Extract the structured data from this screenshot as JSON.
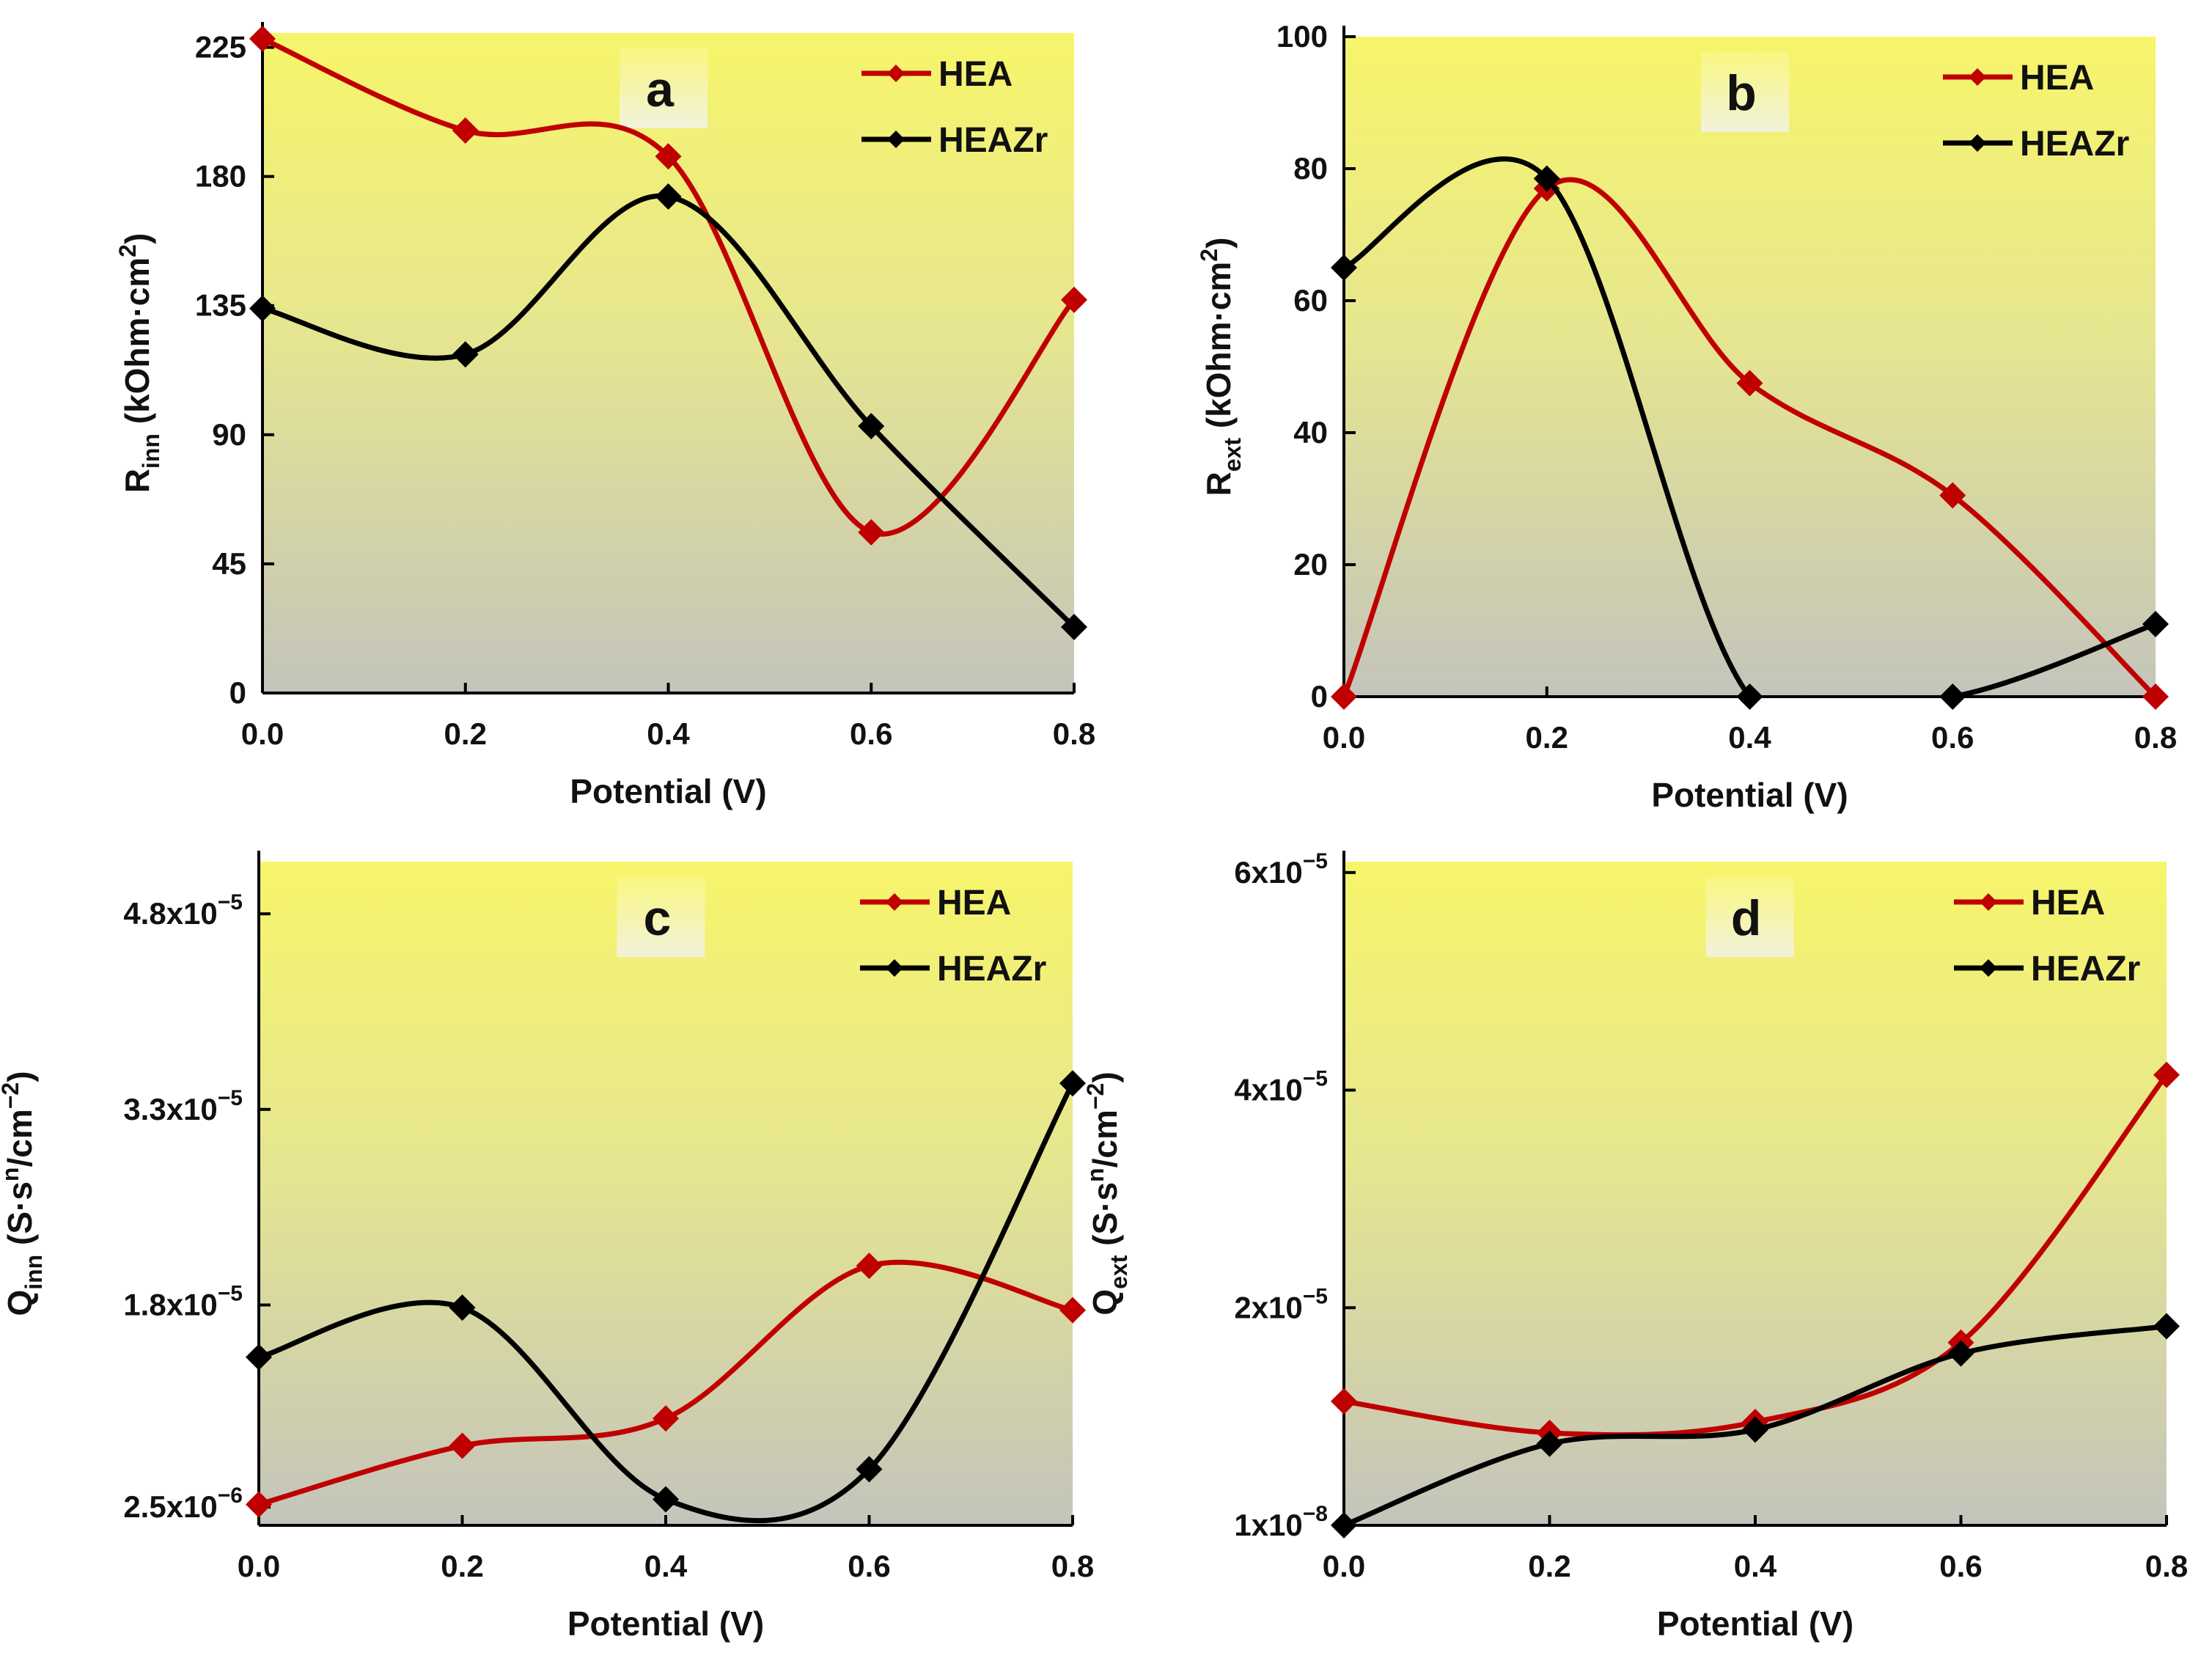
{
  "chart_data": [
    {
      "type": "line",
      "panel_label": "a",
      "x": [
        0.0,
        0.2,
        0.4,
        0.6,
        0.8
      ],
      "x_tick_labels": [
        "0.0",
        "0.2",
        "0.4",
        "0.6",
        "0.8"
      ],
      "xlim": [
        0,
        0.8
      ],
      "y_ticks": [
        0,
        45,
        90,
        135,
        180,
        225
      ],
      "y_tick_labels": [
        "0",
        "45",
        "90",
        "135",
        "180",
        "225"
      ],
      "ylim": [
        0,
        230
      ],
      "xlabel": "Potential (V)",
      "ylabel": {
        "base": "R",
        "sub": "inn",
        "rest": " (kOhm·cm",
        "sup": "2",
        "end": ")"
      },
      "legend_position": "top-right",
      "series": [
        {
          "name": "HEA",
          "color": "#c00000",
          "values": [
            228,
            196,
            187,
            56,
            137
          ]
        },
        {
          "name": "HEAZr",
          "color": "#000000",
          "values": [
            134,
            118,
            173,
            93,
            23
          ]
        }
      ]
    },
    {
      "type": "line",
      "panel_label": "b",
      "x": [
        0.0,
        0.2,
        0.4,
        0.6,
        0.8
      ],
      "x_tick_labels": [
        "0.0",
        "0.2",
        "0.4",
        "0.6",
        "0.8"
      ],
      "xlim": [
        0,
        0.8
      ],
      "y_ticks": [
        0,
        20,
        40,
        60,
        80,
        100
      ],
      "y_tick_labels": [
        "0",
        "20",
        "40",
        "60",
        "80",
        "100"
      ],
      "ylim": [
        0,
        100
      ],
      "xlabel": "Potential (V)",
      "ylabel": {
        "base": "R",
        "sub": "ext",
        "rest": " (kOhm·cm",
        "sup": "2",
        "end": ")"
      },
      "legend_position": "top-right",
      "series": [
        {
          "name": "HEA",
          "color": "#c00000",
          "values": [
            0,
            77,
            47.5,
            30.5,
            0
          ]
        },
        {
          "name": "HEAZr",
          "color": "#000000",
          "values": [
            65,
            78.5,
            0,
            0,
            11
          ]
        }
      ]
    },
    {
      "type": "line",
      "panel_label": "c",
      "x": [
        0.0,
        0.2,
        0.4,
        0.6,
        0.8
      ],
      "x_tick_labels": [
        "0.0",
        "0.2",
        "0.4",
        "0.6",
        "0.8"
      ],
      "xlim": [
        0,
        0.8
      ],
      "y_ticks": [
        2.5e-06,
        1.8e-05,
        3.3e-05,
        4.8e-05
      ],
      "y_tick_labels": [
        {
          "m": "2.5x10",
          "e": "−6"
        },
        {
          "m": "1.8x10",
          "e": "−5"
        },
        {
          "m": "3.3x10",
          "e": "−5"
        },
        {
          "m": "4.8x10",
          "e": "−5"
        }
      ],
      "ylim": [
        1.1e-06,
        5.2e-05
      ],
      "xlabel": "Potential (V)",
      "ylabel": {
        "base": "Q",
        "sub": "inn",
        "rest": " (S·s",
        "sup": "n",
        "mid": "/cm",
        "sup2": "−2",
        "end": ")"
      },
      "legend_position": "top-right",
      "series": [
        {
          "name": "HEA",
          "color": "#c00000",
          "values": [
            2.7e-06,
            7.2e-06,
            9.3e-06,
            2.1e-05,
            1.76e-05
          ]
        },
        {
          "name": "HEAZr",
          "color": "#000000",
          "values": [
            1.4e-05,
            1.78e-05,
            3.1e-06,
            5.4e-06,
            3.5e-05
          ]
        }
      ]
    },
    {
      "type": "line",
      "panel_label": "d",
      "x": [
        0.0,
        0.2,
        0.4,
        0.6,
        0.8
      ],
      "x_tick_labels": [
        "0.0",
        "0.2",
        "0.4",
        "0.6",
        "0.8"
      ],
      "xlim": [
        0,
        0.8
      ],
      "y_ticks": [
        1e-08,
        2e-05,
        4e-05,
        6e-05
      ],
      "y_tick_labels": [
        {
          "m": "1x10",
          "e": "−8"
        },
        {
          "m": "2x10",
          "e": "−5"
        },
        {
          "m": "4x10",
          "e": "−5"
        },
        {
          "m": "6x10",
          "e": "−5"
        }
      ],
      "ylim": [
        0,
        6.1e-05
      ],
      "xlabel": "Potential (V)",
      "ylabel": {
        "base": "Q",
        "sub": "ext",
        "rest": " (S·s",
        "sup": "n",
        "mid": "/cm",
        "sup2": "−2",
        "end": ")"
      },
      "legend_position": "top-right",
      "series": [
        {
          "name": "HEA",
          "color": "#c00000",
          "values": [
            1.14e-05,
            8.5e-06,
            9.5e-06,
            1.68e-05,
            4.14e-05
          ]
        },
        {
          "name": "HEAZr",
          "color": "#000000",
          "values": [
            1e-08,
            7.5e-06,
            8.8e-06,
            1.58e-05,
            1.83e-05
          ]
        }
      ]
    }
  ]
}
